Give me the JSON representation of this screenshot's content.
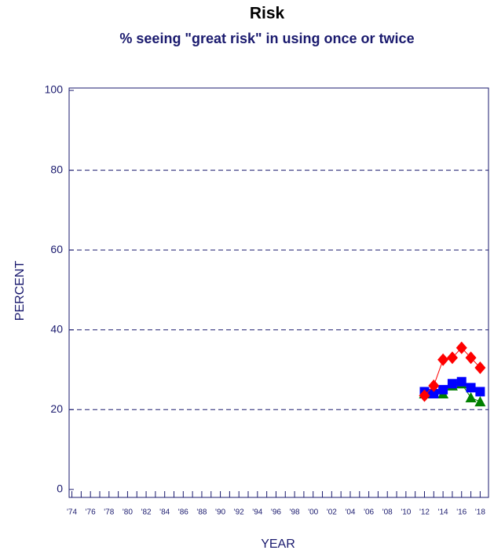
{
  "chart_data": {
    "type": "line",
    "title": "Risk",
    "subtitle": "% seeing \"great risk\" in using once or twice",
    "xlabel": "YEAR",
    "ylabel": "PERCENT",
    "x": [
      2012,
      2013,
      2014,
      2015,
      2016,
      2017,
      2018
    ],
    "series": [
      {
        "color": "#ff0000",
        "marker": "diamond",
        "values": [
          23.5,
          26,
          32.5,
          33,
          35.5,
          33,
          30.5
        ]
      },
      {
        "color": "#0000ff",
        "marker": "square",
        "values": [
          24.5,
          24,
          25,
          26.5,
          27,
          25.5,
          24.5
        ]
      },
      {
        "color": "#008000",
        "marker": "triangle",
        "values": [
          24,
          24,
          24,
          26,
          26.5,
          23,
          22
        ]
      }
    ],
    "xlim": [
      1973.7,
      2018.9
    ],
    "xticks": [
      {
        "value": 1974,
        "label": "'74"
      },
      {
        "value": 1976,
        "label": "'76"
      },
      {
        "value": 1978,
        "label": "'78"
      },
      {
        "value": 1980,
        "label": "'80"
      },
      {
        "value": 1982,
        "label": "'82"
      },
      {
        "value": 1984,
        "label": "'84"
      },
      {
        "value": 1986,
        "label": "'86"
      },
      {
        "value": 1988,
        "label": "'88"
      },
      {
        "value": 1990,
        "label": "'90"
      },
      {
        "value": 1992,
        "label": "'92"
      },
      {
        "value": 1994,
        "label": "'94"
      },
      {
        "value": 1996,
        "label": "'96"
      },
      {
        "value": 1998,
        "label": "'98"
      },
      {
        "value": 2000,
        "label": "'00"
      },
      {
        "value": 2002,
        "label": "'02"
      },
      {
        "value": 2004,
        "label": "'04"
      },
      {
        "value": 2006,
        "label": "'06"
      },
      {
        "value": 2008,
        "label": "'08"
      },
      {
        "value": 2010,
        "label": "'10"
      },
      {
        "value": 2012,
        "label": "'12"
      },
      {
        "value": 2014,
        "label": "'14"
      },
      {
        "value": 2016,
        "label": "'16"
      },
      {
        "value": 2018,
        "label": "'18"
      }
    ],
    "xminorticks": [
      1975,
      1977,
      1979,
      1981,
      1983,
      1985,
      1987,
      1989,
      1991,
      1993,
      1995,
      1997,
      1999,
      2001,
      2003,
      2005,
      2007,
      2009,
      2011,
      2013,
      2015,
      2017
    ],
    "ylim": [
      -2,
      100.6
    ],
    "yticks": [
      0,
      20,
      40,
      60,
      80,
      100
    ],
    "grid": true
  }
}
